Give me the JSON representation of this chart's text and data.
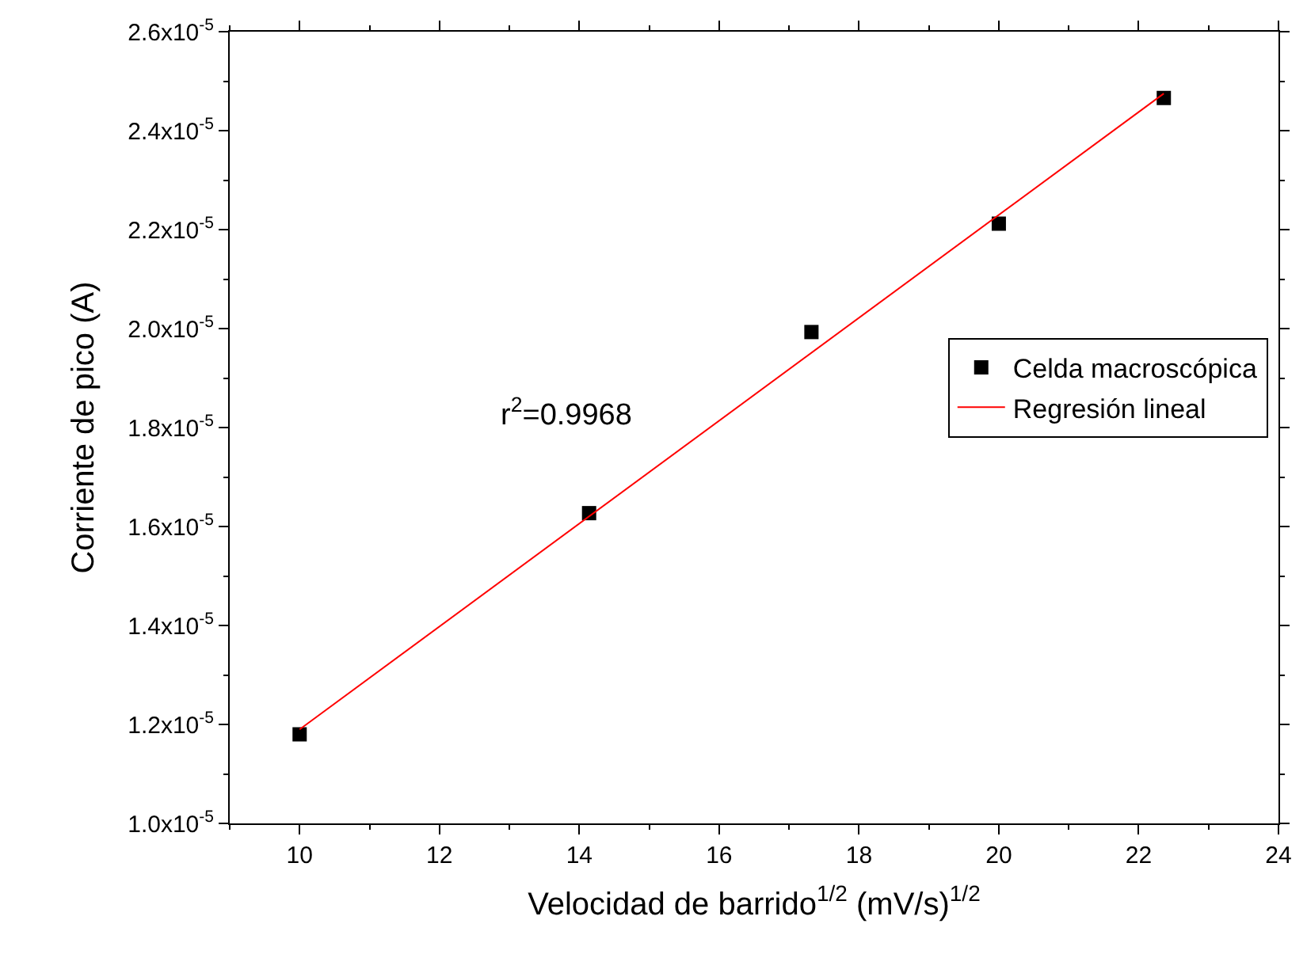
{
  "chart_data": {
    "type": "scatter",
    "xlabel": "Velocidad de barrido$^{1/2}$ (mV/s)$^{1/2}$",
    "ylabel": "Corriente de pico (A)",
    "annotations": [
      "r$^{2}$=0.9968"
    ],
    "series": [
      {
        "name": "Celda macroscópica",
        "marker": "square",
        "color": "#000000",
        "x": [
          10,
          14.14,
          17.32,
          20,
          22.36
        ],
        "values": [
          1.18e-05,
          1.627e-05,
          1.993e-05,
          2.212e-05,
          2.466e-05
        ]
      },
      {
        "name": "Regresión lineal",
        "type": "line",
        "color": "#ff0000",
        "x": [
          10,
          22.36
        ],
        "values": [
          1.19e-05,
          2.475e-05
        ]
      }
    ],
    "xlim": [
      9,
      24
    ],
    "xticks": [
      10,
      12,
      14,
      16,
      18,
      20,
      22,
      24
    ],
    "ylim": [
      1e-05,
      2.6e-05
    ],
    "yticks": [
      {
        "value": 1e-05,
        "label": "1.0x10$^{-5}$"
      },
      {
        "value": 1.2e-05,
        "label": "1.2x10$^{-5}$"
      },
      {
        "value": 1.4e-05,
        "label": "1.4x10$^{-5}$"
      },
      {
        "value": 1.6e-05,
        "label": "1.6x10$^{-5}$"
      },
      {
        "value": 1.8e-05,
        "label": "1.8x10$^{-5}$"
      },
      {
        "value": 2e-05,
        "label": "2.0x10$^{-5}$"
      },
      {
        "value": 2.2e-05,
        "label": "2.2x10$^{-5}$"
      },
      {
        "value": 2.4e-05,
        "label": "2.4x10$^{-5}$"
      },
      {
        "value": 2.6e-05,
        "label": "2.6x10$^{-5}$"
      }
    ],
    "legend": "right"
  }
}
